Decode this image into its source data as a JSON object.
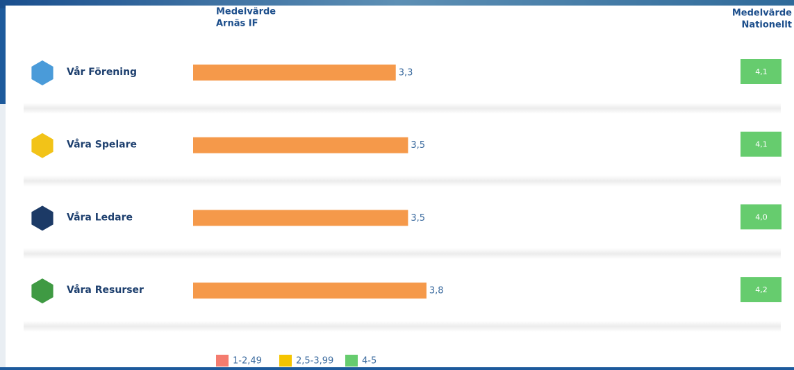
{
  "chart_data": {
    "type": "bar",
    "club_header": [
      "Medelvärde",
      "Arnäs IF"
    ],
    "national_header": [
      "Medelvärde",
      "Nationellt"
    ],
    "categories": [
      "Vår Förening",
      "Våra Spelare",
      "Våra Ledare",
      "Våra Resurser"
    ],
    "icon_colors": [
      "#4a9bd9",
      "#f2c318",
      "#1c3a66",
      "#3f9a43"
    ],
    "values": [
      3.3,
      3.5,
      3.5,
      3.8
    ],
    "value_labels": [
      "3,3",
      "3,5",
      "3,5",
      "3,8"
    ],
    "color": "#f5994a",
    "xlim": [
      0,
      5
    ],
    "national": {
      "values": [
        4.1,
        4.1,
        4.0,
        4.2
      ],
      "value_labels": [
        "4,1",
        "4,1",
        "4,0",
        "4,2"
      ],
      "color": "#66cc6e"
    },
    "legend": [
      {
        "label": "1-2,49",
        "color": "#f47c6f"
      },
      {
        "label": "2,5-3,99",
        "color": "#f5c400"
      },
      {
        "label": "4-5",
        "color": "#66cc6e"
      }
    ]
  }
}
